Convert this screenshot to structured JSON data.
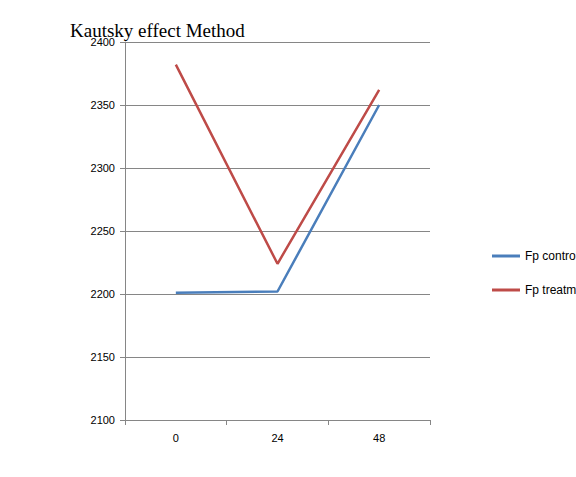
{
  "chart_data": {
    "type": "line",
    "title": "Kautsky effect Method",
    "categories": [
      "0",
      "24",
      "48"
    ],
    "series": [
      {
        "name": "Fp control",
        "color": "#4a7ebb",
        "values": [
          2201,
          2202,
          2350
        ]
      },
      {
        "name": "Fp treatment",
        "color": "#be4b48",
        "values": [
          2382,
          2224,
          2362
        ]
      }
    ],
    "ylim": [
      2100,
      2400
    ],
    "yticks": [
      2100,
      2150,
      2200,
      2250,
      2300,
      2350,
      2400
    ],
    "grid": true,
    "legend": "right",
    "marker": "none",
    "line_style": "solid"
  }
}
